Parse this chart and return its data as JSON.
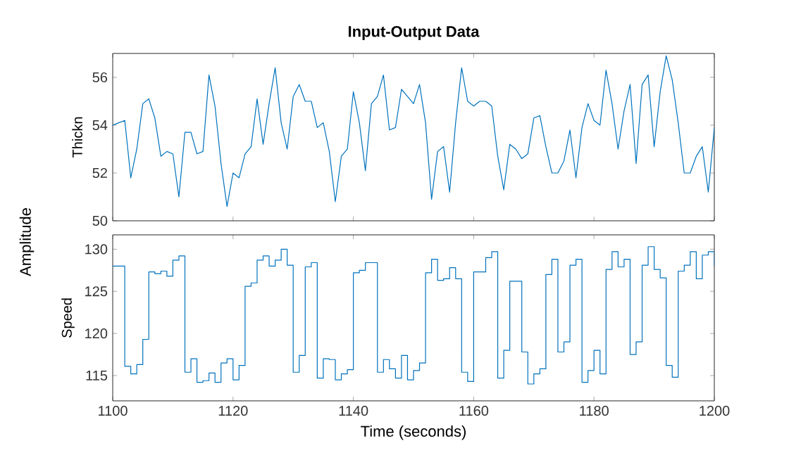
{
  "chart_data": [
    {
      "type": "line",
      "title": "Input-Output Data",
      "ylabel": "Thickn",
      "annotations": [
        "Amplitude"
      ],
      "color": "#0072bd",
      "tick_labels": "y",
      "xlim": [
        1100,
        1200
      ],
      "xticks": [
        1100,
        1120,
        1140,
        1160,
        1180,
        1200
      ],
      "ylim": [
        50,
        57
      ],
      "yticks": [
        50,
        52,
        54,
        56
      ],
      "x": [
        1100,
        1101,
        1102,
        1103,
        1104,
        1105,
        1106,
        1107,
        1108,
        1109,
        1110,
        1111,
        1112,
        1113,
        1114,
        1115,
        1116,
        1117,
        1118,
        1119,
        1120,
        1121,
        1122,
        1123,
        1124,
        1125,
        1126,
        1127,
        1128,
        1129,
        1130,
        1131,
        1132,
        1133,
        1134,
        1135,
        1136,
        1137,
        1138,
        1139,
        1140,
        1141,
        1142,
        1143,
        1144,
        1145,
        1146,
        1147,
        1148,
        1149,
        1150,
        1151,
        1152,
        1153,
        1154,
        1155,
        1156,
        1157,
        1158,
        1159,
        1160,
        1161,
        1162,
        1163,
        1164,
        1165,
        1166,
        1167,
        1168,
        1169,
        1170,
        1171,
        1172,
        1173,
        1174,
        1175,
        1176,
        1177,
        1178,
        1179,
        1180,
        1181,
        1182,
        1183,
        1184,
        1185,
        1186,
        1187,
        1188,
        1189,
        1190,
        1191,
        1192,
        1193,
        1194,
        1195,
        1196,
        1197,
        1198,
        1199,
        1200
      ],
      "values": [
        54.0,
        54.1,
        54.2,
        51.8,
        53.0,
        54.9,
        55.1,
        54.3,
        52.7,
        52.9,
        52.8,
        51.0,
        53.7,
        53.7,
        52.8,
        52.9,
        56.1,
        54.8,
        52.4,
        50.6,
        52.0,
        51.8,
        52.8,
        53.1,
        55.1,
        53.2,
        54.9,
        56.4,
        54.1,
        53.0,
        55.2,
        55.7,
        55.0,
        55.0,
        53.9,
        54.1,
        52.9,
        50.8,
        52.7,
        53.0,
        55.4,
        54.1,
        52.1,
        54.9,
        55.2,
        56.1,
        53.8,
        53.9,
        55.5,
        55.2,
        54.9,
        55.7,
        54.1,
        50.9,
        52.9,
        53.1,
        51.2,
        54.1,
        56.4,
        55.0,
        54.8,
        55.0,
        55.0,
        54.8,
        52.7,
        51.3,
        53.2,
        53.0,
        52.6,
        52.8,
        54.3,
        54.4,
        53.1,
        52.0,
        52.0,
        52.5,
        53.8,
        51.8,
        53.9,
        54.9,
        54.2,
        54.0,
        56.3,
        54.9,
        53.0,
        54.6,
        55.7,
        52.4,
        55.7,
        56.1,
        53.1,
        55.4,
        56.9,
        55.9,
        54.1,
        52.0,
        52.0,
        52.7,
        53.1,
        51.2,
        53.9
      ]
    },
    {
      "type": "step",
      "ylabel": "Speed",
      "xlabel": "Time (seconds)",
      "color": "#0072bd",
      "xlim": [
        1100,
        1200
      ],
      "xticks": [
        1100,
        1120,
        1140,
        1160,
        1180,
        1200
      ],
      "ylim": [
        112,
        131.7
      ],
      "yticks": [
        115,
        120,
        125,
        130
      ],
      "x": [
        1100,
        1101,
        1102,
        1103,
        1104,
        1105,
        1106,
        1107,
        1108,
        1109,
        1110,
        1111,
        1112,
        1113,
        1114,
        1115,
        1116,
        1117,
        1118,
        1119,
        1120,
        1121,
        1122,
        1123,
        1124,
        1125,
        1126,
        1127,
        1128,
        1129,
        1130,
        1131,
        1132,
        1133,
        1134,
        1135,
        1136,
        1137,
        1138,
        1139,
        1140,
        1141,
        1142,
        1143,
        1144,
        1145,
        1146,
        1147,
        1148,
        1149,
        1150,
        1151,
        1152,
        1153,
        1154,
        1155,
        1156,
        1157,
        1158,
        1159,
        1160,
        1161,
        1162,
        1163,
        1164,
        1165,
        1166,
        1167,
        1168,
        1169,
        1170,
        1171,
        1172,
        1173,
        1174,
        1175,
        1176,
        1177,
        1178,
        1179,
        1180,
        1181,
        1182,
        1183,
        1184,
        1185,
        1186,
        1187,
        1188,
        1189,
        1190,
        1191,
        1192,
        1193,
        1194,
        1195,
        1196,
        1197,
        1198,
        1199,
        1200
      ],
      "values": [
        128.0,
        128.0,
        116.1,
        115.2,
        116.3,
        119.3,
        127.3,
        127.1,
        127.4,
        126.8,
        128.7,
        129.2,
        115.4,
        117.0,
        114.2,
        114.4,
        115.3,
        114.2,
        116.5,
        117.0,
        114.5,
        116.2,
        125.6,
        126.0,
        128.7,
        129.2,
        128.0,
        128.7,
        130.0,
        128.1,
        115.4,
        117.4,
        127.9,
        128.4,
        114.7,
        117.0,
        116.9,
        114.5,
        115.2,
        115.7,
        127.2,
        127.5,
        128.4,
        128.4,
        115.4,
        116.9,
        115.8,
        114.7,
        117.4,
        114.5,
        115.6,
        116.5,
        127.2,
        128.8,
        126.3,
        126.5,
        127.8,
        126.5,
        115.4,
        114.3,
        127.3,
        127.3,
        129.0,
        129.7,
        114.7,
        118.0,
        126.2,
        126.2,
        117.8,
        114.0,
        115.2,
        115.8,
        127.0,
        128.8,
        117.8,
        119.0,
        128.1,
        128.8,
        114.2,
        115.6,
        118.0,
        115.2,
        127.6,
        129.7,
        127.9,
        128.8,
        117.5,
        119.0,
        128.1,
        130.3,
        127.6,
        126.6,
        116.2,
        114.8,
        127.4,
        128.1,
        129.7,
        126.5,
        129.3,
        129.7,
        128.0
      ]
    }
  ]
}
